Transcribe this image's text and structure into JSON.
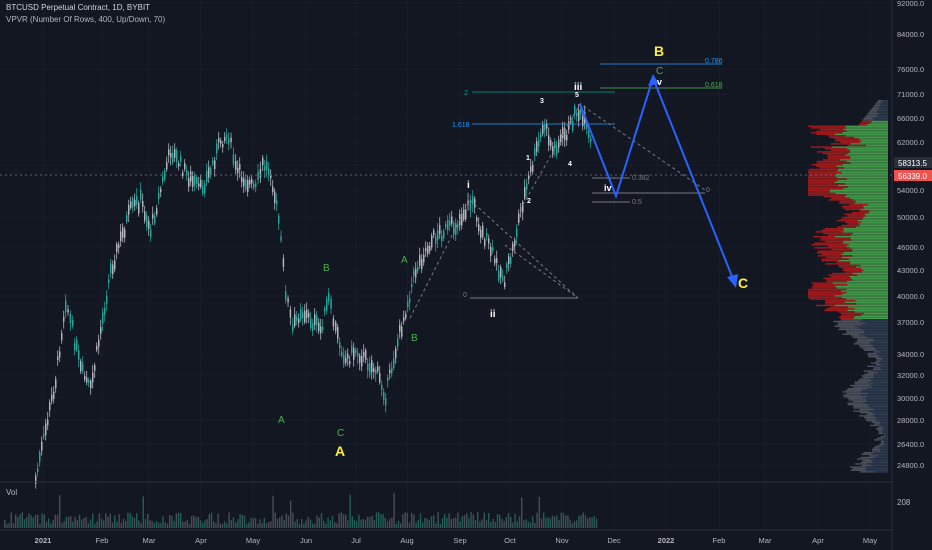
{
  "header": {
    "symbol_line": "BTCUSD Perpetual Contract, 1D, BYBIT",
    "indicator_line": "VPVR (Number Of Rows, 400, Up/Down, 70)"
  },
  "volume_pane": {
    "label": "Vol",
    "value": "208"
  },
  "price_axis": [
    "92000.0",
    "84000.0",
    "76000.0",
    "71000.0",
    "66000.0",
    "62000.0",
    "58000.0",
    "54000.0",
    "50000.0",
    "46000.0",
    "43000.0",
    "40000.0",
    "37000.0",
    "34000.0",
    "32000.0",
    "30000.0",
    "28000.0",
    "26400.0",
    "24800.0"
  ],
  "time_axis": [
    "2021",
    "Feb",
    "Mar",
    "Apr",
    "May",
    "Jun",
    "Jul",
    "Aug",
    "Sep",
    "Oct",
    "Nov",
    "Dec",
    "2022",
    "Feb",
    "Mar",
    "Apr",
    "May"
  ],
  "price_tags": [
    {
      "value": "58313.5",
      "bg": "#2a2e39",
      "fg": "#ffffff"
    },
    {
      "value": "56339.0",
      "bg": "#ef5350",
      "fg": "#ffffff"
    }
  ],
  "wave_labels": {
    "A_small_1": "A",
    "C_small_1": "C",
    "B_small_1": "B",
    "A_big": "A",
    "A_small_2": "A",
    "B_small_2": "B",
    "i": "i",
    "ii": "ii",
    "iii": "iii",
    "iv": "iv",
    "v": "v",
    "w1": "1",
    "w2": "2",
    "w3": "3",
    "w4": "4",
    "w5": "5",
    "B_big": "B",
    "C_small_3": "C",
    "C_big": "C"
  },
  "fib_labels": {
    "f2": "2",
    "f1618": "1.618",
    "f0786": "0.786",
    "f0618": "0.618",
    "f0382": "0.382",
    "f05": "0.5",
    "f0a": "0",
    "f0b": "0"
  },
  "colors": {
    "background": "#131722",
    "candle_up": "#26a69a",
    "candle_down": "#b2b5be",
    "projection": "#2962ff",
    "label_yellow": "#ffeb3b",
    "label_green": "#4caf50",
    "vpvr_up": "#4caf50",
    "vpvr_down": "#b71c1c",
    "vpvr_gray": "#5d606b"
  }
}
